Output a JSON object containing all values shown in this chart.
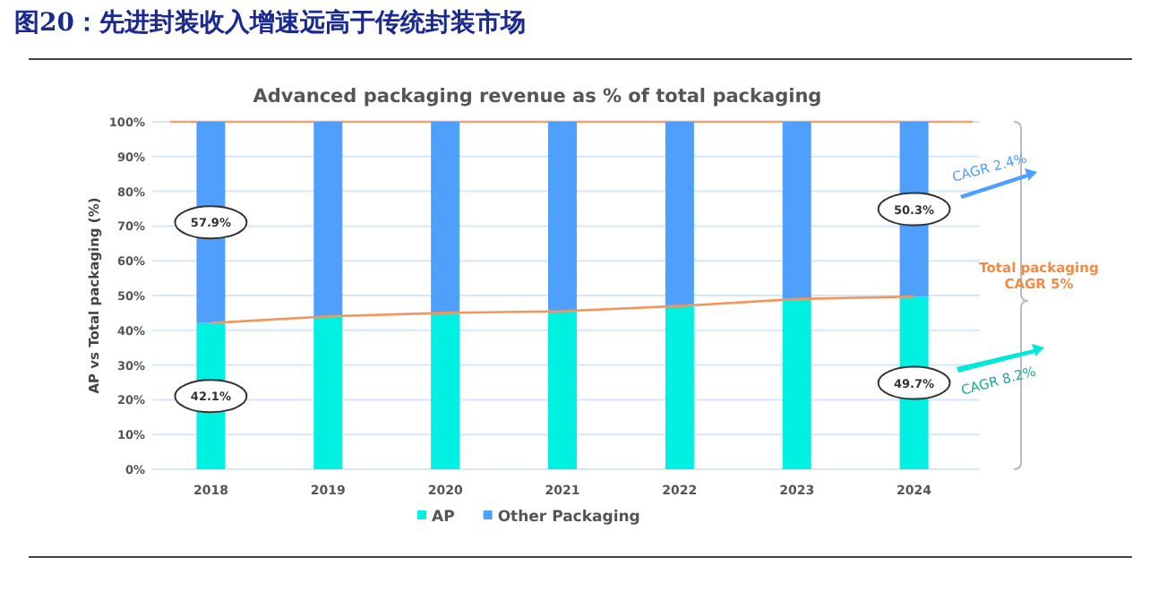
{
  "chart_data": {
    "type": "bar",
    "stacked": true,
    "title": "图20：先进封装收入增速远高于传统封装市场",
    "subtitle": "Advanced packaging revenue as % of total packaging",
    "ylabel": "AP vs Total packaging (%)",
    "categories": [
      "2018",
      "2019",
      "2020",
      "2021",
      "2022",
      "2023",
      "2024"
    ],
    "series": [
      {
        "name": "AP",
        "color": "#00f0e2",
        "values": [
          42.1,
          44,
          45,
          45.5,
          47,
          49,
          49.7
        ],
        "value_labels": [
          "42.1%",
          null,
          null,
          null,
          null,
          null,
          "49.7%"
        ]
      },
      {
        "name": "Other Packaging",
        "color": "#4f9ffc",
        "values": [
          57.9,
          56,
          55,
          54.5,
          53,
          51,
          50.3
        ],
        "value_labels": [
          "57.9%",
          null,
          null,
          null,
          null,
          null,
          "50.3%"
        ]
      },
      {
        "type": "line",
        "color": "#f5955a",
        "values": [
          42.1,
          44,
          45,
          45.5,
          47,
          49,
          49.7
        ]
      }
    ],
    "ylim": [
      0,
      100
    ],
    "yticks": [
      {
        "value": 0,
        "label": "0%"
      },
      {
        "value": 10,
        "label": "10%"
      },
      {
        "value": 20,
        "label": "20%"
      },
      {
        "value": 30,
        "label": "30%"
      },
      {
        "value": 40,
        "label": "40%"
      },
      {
        "value": 50,
        "label": "50%"
      },
      {
        "value": 60,
        "label": "60%"
      },
      {
        "value": 70,
        "label": "70%"
      },
      {
        "value": 80,
        "label": "80%"
      },
      {
        "value": 90,
        "label": "90%"
      },
      {
        "value": 100,
        "label": "100%"
      }
    ],
    "ref_lines": [
      {
        "axis": "y",
        "value": 100,
        "color": "#f5a070"
      }
    ],
    "grid": "y",
    "legend": "bottom",
    "annotations": [
      "CAGR 2.4%",
      "Total packaging CAGR 5%",
      "CAGR 8.2%"
    ]
  }
}
